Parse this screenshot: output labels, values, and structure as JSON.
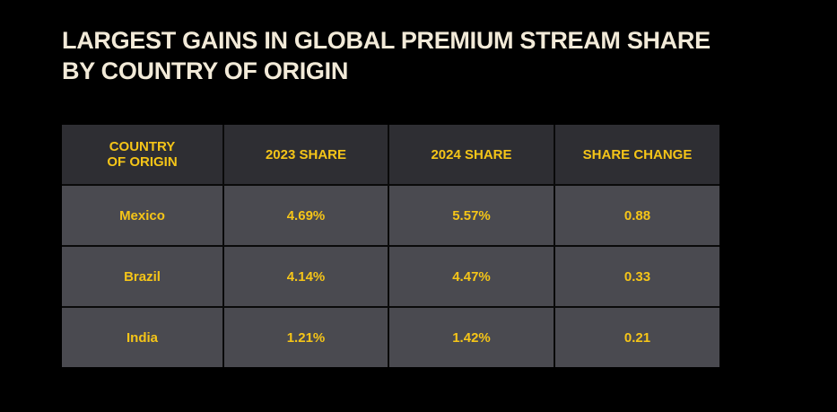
{
  "title": "LARGEST GAINS IN GLOBAL PREMIUM STREAM SHARE BY COUNTRY OF ORIGIN",
  "chart_data": {
    "type": "table",
    "title": "LARGEST GAINS IN GLOBAL PREMIUM STREAM SHARE BY COUNTRY OF ORIGIN",
    "columns": [
      "COUNTRY\nOF ORIGIN",
      "2023 SHARE",
      "2024 SHARE",
      "SHARE CHANGE"
    ],
    "rows": [
      [
        "Mexico",
        "4.69%",
        "5.57%",
        "0.88"
      ],
      [
        "Brazil",
        "4.14%",
        "4.47%",
        "0.33"
      ],
      [
        "India",
        "1.21%",
        "1.42%",
        "0.21"
      ]
    ]
  },
  "colors": {
    "background": "#000000",
    "title": "#f2ead8",
    "accent_text": "#f5c518",
    "header_bg": "#2e2e33",
    "cell_bg": "#4a4a50"
  }
}
